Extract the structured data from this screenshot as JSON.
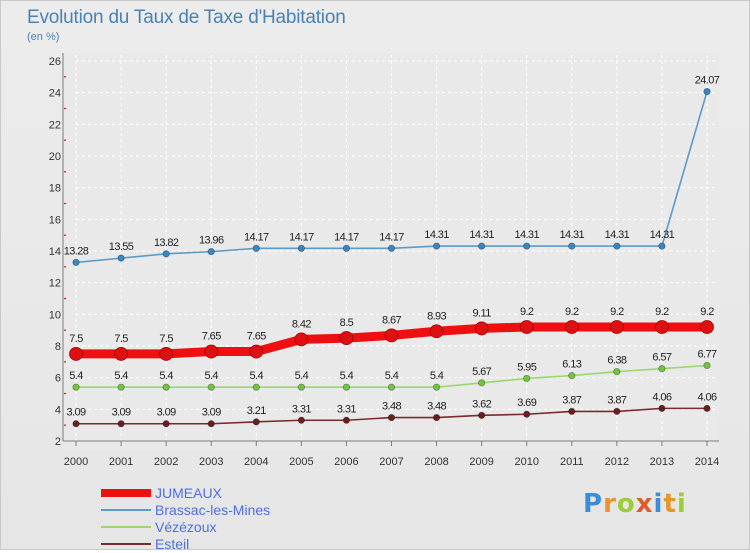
{
  "header": {
    "title": "Evolution du Taux de Taxe d'Habitation",
    "subtitle": "(en %)"
  },
  "logo": {
    "letters": [
      "P",
      "r",
      "o",
      "x",
      "i",
      "t",
      "i"
    ],
    "colors": [
      "#3a8dd6",
      "#e8952a",
      "#9bcc3a",
      "#e05a2b",
      "#3a8dd6",
      "#e8952a",
      "#9bcc3a"
    ]
  },
  "colors": {
    "grid": "#ffffff",
    "axis": "#7a7a7a",
    "tick_mark": "#d01818",
    "label": "#333333"
  },
  "chart_data": {
    "type": "line",
    "title": "Evolution du Taux de Taxe d'Habitation",
    "ylabel": "(en %)",
    "xlabel": "",
    "x": [
      "2000",
      "2001",
      "2002",
      "2003",
      "2004",
      "2005",
      "2006",
      "2007",
      "2008",
      "2009",
      "2010",
      "2011",
      "2012",
      "2013",
      "2014"
    ],
    "ylim": [
      2,
      26
    ],
    "yticks": [
      "2",
      "4",
      "6",
      "8",
      "10",
      "12",
      "14",
      "16",
      "18",
      "20",
      "22",
      "24",
      "26"
    ],
    "grid": true,
    "legend_position": "bottom-left",
    "series": [
      {
        "name": "JUMEAUX",
        "color": "#ee1010",
        "marker_color": "#dd1111",
        "thick": true,
        "values": [
          7.5,
          7.5,
          7.5,
          7.65,
          7.65,
          8.42,
          8.5,
          8.67,
          8.93,
          9.11,
          9.2,
          9.2,
          9.2,
          9.2,
          9.2
        ],
        "labels": [
          "7.5",
          "7.5",
          "7.5",
          "7.65",
          "7.65",
          "8.42",
          "8.5",
          "8.67",
          "8.93",
          "9.11",
          "9.2",
          "9.2",
          "9.2",
          "9.2",
          "9.2"
        ]
      },
      {
        "name": "Brassac-les-Mines",
        "color": "#5b9ac8",
        "marker_color": "#3a86c2",
        "thick": false,
        "values": [
          13.28,
          13.55,
          13.82,
          13.96,
          14.17,
          14.17,
          14.17,
          14.17,
          14.31,
          14.31,
          14.31,
          14.31,
          14.31,
          14.31,
          24.07
        ],
        "labels": [
          "13.28",
          "13.55",
          "13.82",
          "13.96",
          "14.17",
          "14.17",
          "14.17",
          "14.17",
          "14.31",
          "14.31",
          "14.31",
          "14.31",
          "14.31",
          "14.31",
          "24.07"
        ]
      },
      {
        "name": "Vézézoux",
        "color": "#9ad86e",
        "marker_color": "#6fc63a",
        "thick": false,
        "values": [
          5.4,
          5.4,
          5.4,
          5.4,
          5.4,
          5.4,
          5.4,
          5.4,
          5.4,
          5.67,
          5.95,
          6.13,
          6.38,
          6.57,
          6.77
        ],
        "labels": [
          "5.4",
          "5.4",
          "5.4",
          "5.4",
          "5.4",
          "5.4",
          "5.4",
          "5.4",
          "5.4",
          "5.67",
          "5.95",
          "6.13",
          "6.38",
          "6.57",
          "6.77"
        ]
      },
      {
        "name": "Esteil",
        "color": "#7a2a2a",
        "marker_color": "#6b1e1e",
        "thick": false,
        "values": [
          3.09,
          3.09,
          3.09,
          3.09,
          3.21,
          3.31,
          3.31,
          3.48,
          3.48,
          3.62,
          3.69,
          3.87,
          3.87,
          4.06,
          4.06
        ],
        "labels": [
          "3.09",
          "3.09",
          "3.09",
          "3.09",
          "3.21",
          "3.31",
          "3.31",
          "3.48",
          "3.48",
          "3.62",
          "3.69",
          "3.87",
          "3.87",
          "4.06",
          "4.06"
        ]
      }
    ]
  }
}
